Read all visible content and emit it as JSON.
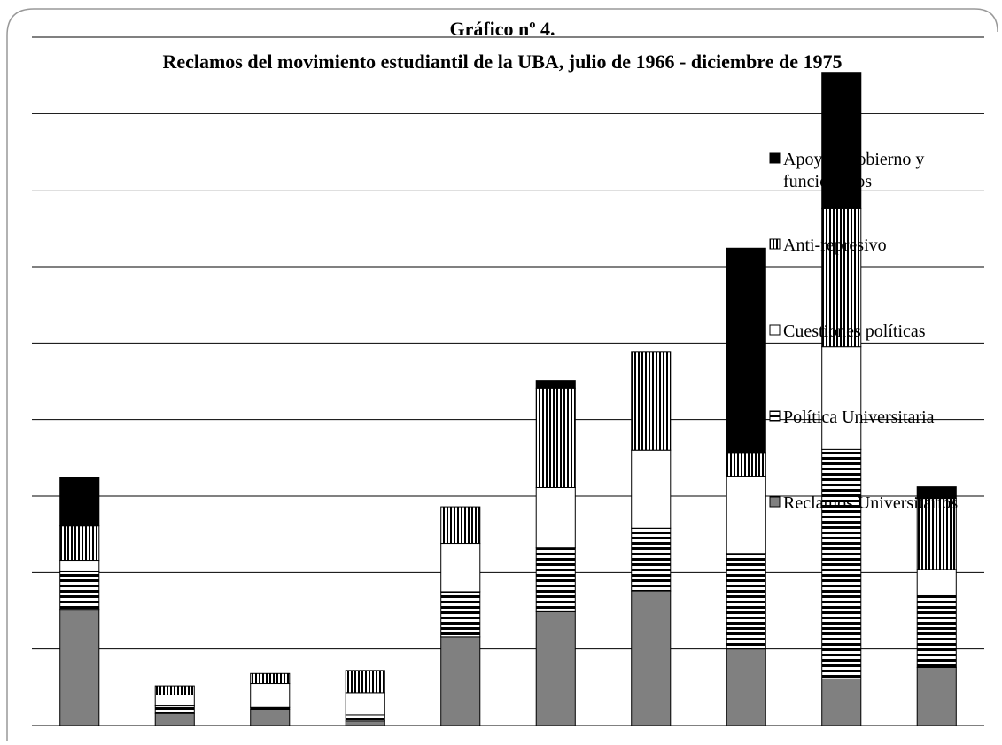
{
  "chart_data": {
    "type": "stacked-bar",
    "title": "Gráfico nº 4.",
    "subtitle": "Reclamos del movimiento estudiantil de la UBA, julio de 1966 - diciembre de 1975",
    "categories": [
      null,
      null,
      null,
      null,
      null,
      null,
      null,
      null,
      null,
      null
    ],
    "series": [
      {
        "name": "Reclamos Universitarios",
        "color": "#808080",
        "pattern": "solid",
        "values": [
          15.1,
          1.6,
          2.1,
          0.6,
          11.6,
          14.9,
          17.6,
          10.0,
          6.1,
          7.6
        ]
      },
      {
        "name": "Política Universitaria",
        "color": "#000000",
        "pattern": "horizontal",
        "values": [
          5.0,
          1.0,
          0.3,
          0.8,
          5.9,
          8.3,
          8.2,
          12.5,
          30.0,
          9.6
        ]
      },
      {
        "name": "Cuestiones políticas",
        "color": "#ffffff",
        "pattern": "solid",
        "values": [
          1.5,
          1.4,
          3.1,
          2.9,
          6.3,
          7.9,
          10.2,
          10.1,
          13.4,
          3.2
        ]
      },
      {
        "name": "Anti-represivo",
        "color": "#000000",
        "pattern": "vertical",
        "values": [
          4.5,
          1.2,
          1.3,
          2.9,
          4.8,
          13.0,
          12.9,
          3.1,
          18.1,
          9.3
        ]
      },
      {
        "name": "Apoyo a gobierno y funcionarios",
        "color": "#000000",
        "pattern": "solid",
        "values": [
          6.3,
          0,
          0,
          0,
          0,
          1.0,
          0,
          26.7,
          17.8,
          1.5
        ]
      }
    ],
    "ylim": [
      0,
      90
    ],
    "yticks": [
      0,
      10,
      20,
      30,
      40,
      50,
      60,
      70,
      80,
      90
    ],
    "grid": true,
    "legend": "right"
  }
}
